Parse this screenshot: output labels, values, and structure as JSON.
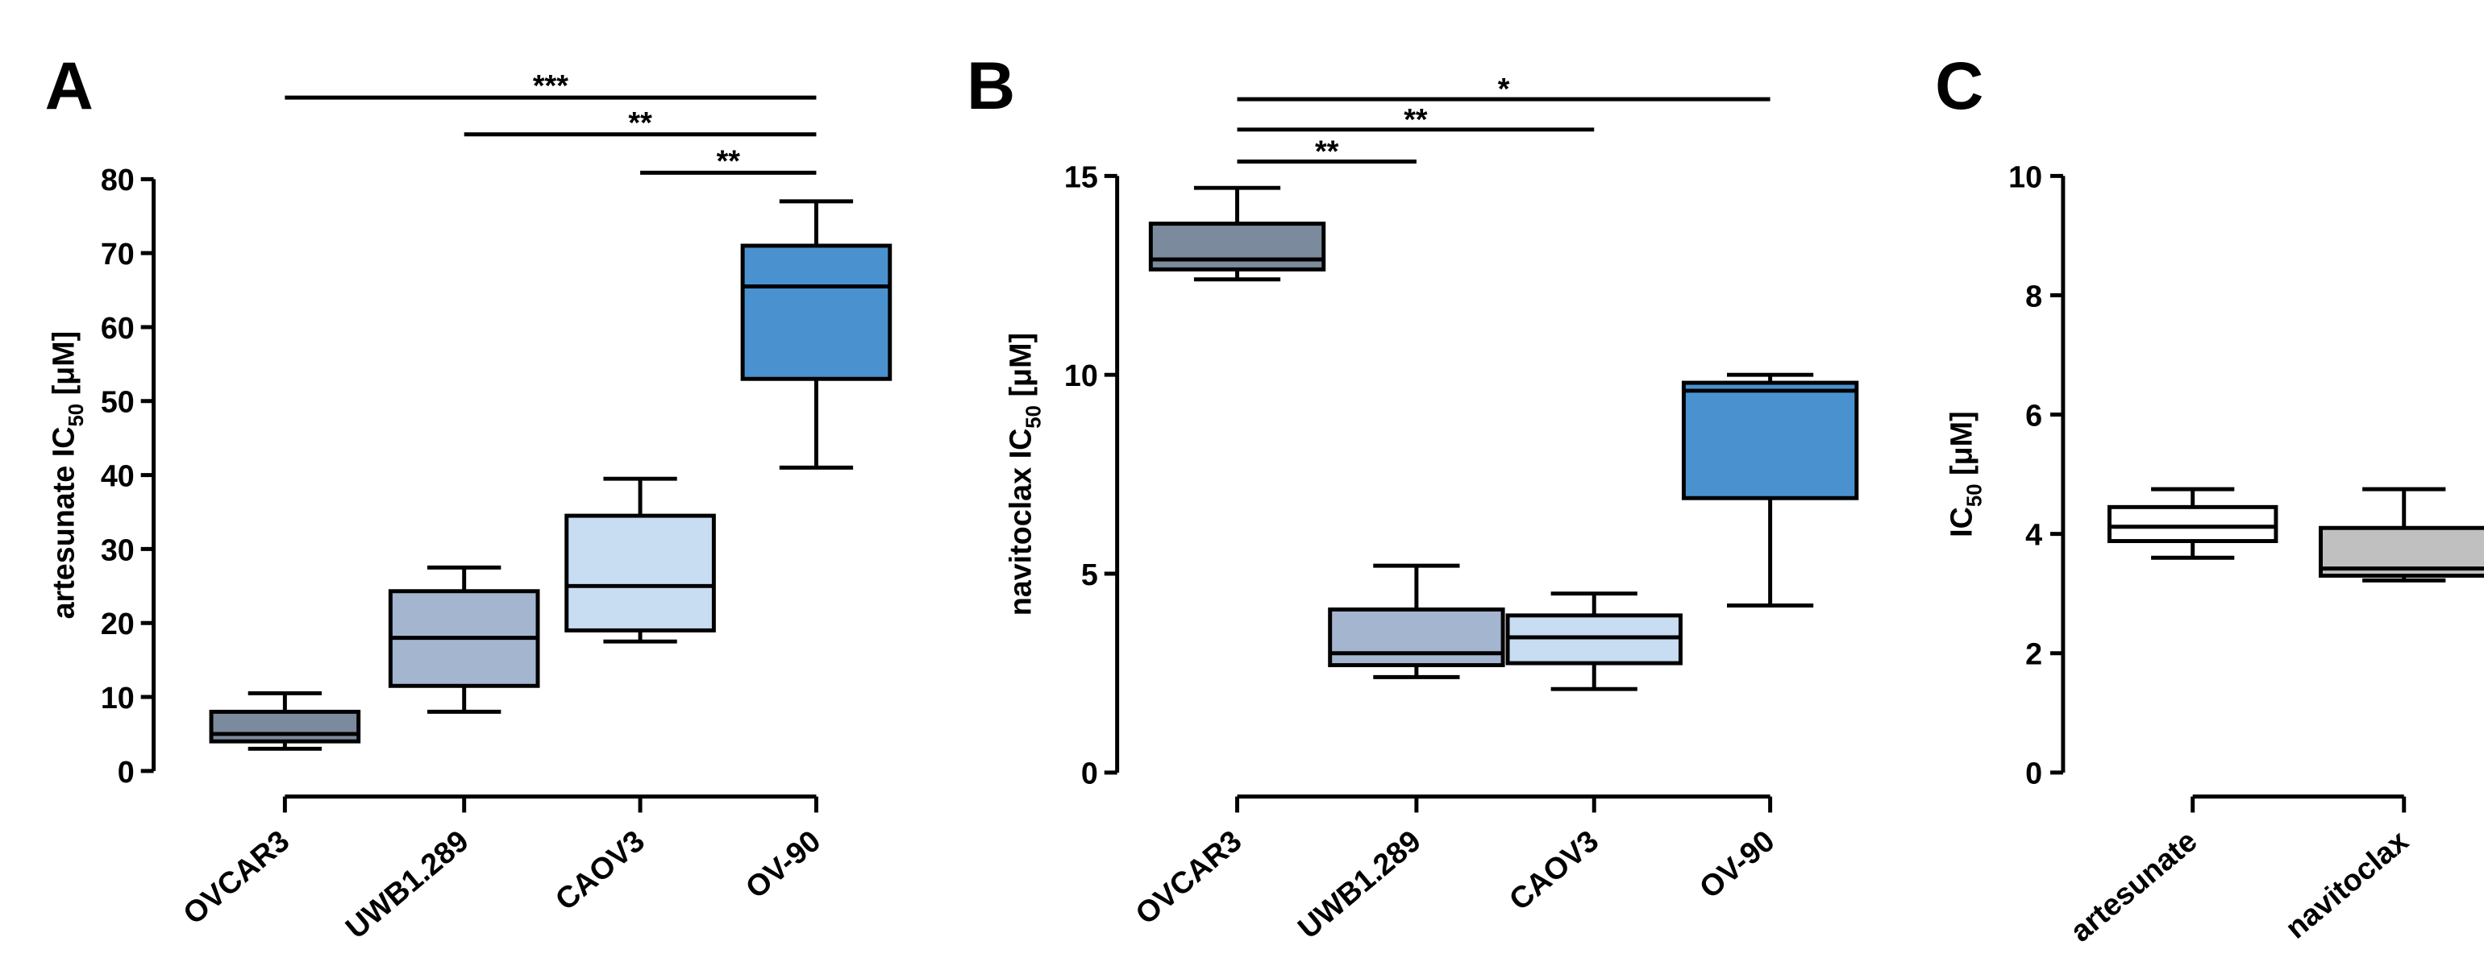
{
  "chart_data": [
    {
      "type": "box",
      "panel": "A",
      "ylabel": {
        "prefix": "artesunate IC",
        "sub": "50",
        "suffix": " [μM]"
      },
      "ylim": [
        0,
        80
      ],
      "yticks": [
        0,
        10,
        20,
        30,
        40,
        50,
        60,
        70,
        80
      ],
      "categories": [
        "OVCAR3",
        "UWB1.289",
        "CAOV3",
        "OV-90"
      ],
      "boxes": [
        {
          "name": "OVCAR3",
          "min": 3,
          "q1": 4,
          "median": 5,
          "q3": 8,
          "max": 10.5,
          "color": "#7b8a9c"
        },
        {
          "name": "UWB1.289",
          "min": 8,
          "q1": 11.5,
          "median": 18,
          "q3": 24.3,
          "max": 27.5,
          "color": "#a4b5cf"
        },
        {
          "name": "CAOV3",
          "min": 17.5,
          "q1": 19,
          "median": 25,
          "q3": 34.5,
          "max": 39.5,
          "color": "#c8dcf2"
        },
        {
          "name": "OV-90",
          "min": 41,
          "q1": 53,
          "median": 65.5,
          "q3": 71,
          "max": 77,
          "color": "#4a92cf"
        }
      ],
      "significance": [
        {
          "from": "OVCAR3",
          "to": "OV-90",
          "label": "***"
        },
        {
          "from": "UWB1.289",
          "to": "OV-90",
          "label": "**"
        },
        {
          "from": "CAOV3",
          "to": "OV-90",
          "label": "**"
        }
      ]
    },
    {
      "type": "box",
      "panel": "B",
      "ylabel": {
        "prefix": "navitoclax IC",
        "sub": "50",
        "suffix": " [μM]"
      },
      "ylim": [
        0,
        15
      ],
      "yticks": [
        0,
        5,
        10,
        15
      ],
      "categories": [
        "OVCAR3",
        "UWB1.289",
        "CAOV3",
        "OV-90"
      ],
      "boxes": [
        {
          "name": "OVCAR3",
          "min": 12.4,
          "q1": 12.65,
          "median": 12.9,
          "q3": 13.8,
          "max": 14.7,
          "color": "#7b8a9c"
        },
        {
          "name": "UWB1.289",
          "min": 2.4,
          "q1": 2.7,
          "median": 3.0,
          "q3": 4.1,
          "max": 5.2,
          "color": "#a4b5cf"
        },
        {
          "name": "CAOV3",
          "min": 2.1,
          "q1": 2.75,
          "median": 3.4,
          "q3": 3.95,
          "max": 4.5,
          "color": "#c8dcf2"
        },
        {
          "name": "OV-90",
          "min": 4.2,
          "q1": 6.9,
          "median": 9.6,
          "q3": 9.8,
          "max": 10.0,
          "color": "#4a92cf"
        }
      ],
      "significance": [
        {
          "from": "OVCAR3",
          "to": "OV-90",
          "label": "*"
        },
        {
          "from": "OVCAR3",
          "to": "CAOV3",
          "label": "**"
        },
        {
          "from": "OVCAR3",
          "to": "UWB1.289",
          "label": "**"
        }
      ]
    },
    {
      "type": "box",
      "panel": "C",
      "ylabel": {
        "prefix": "IC",
        "sub": "50",
        "suffix": " [μM]"
      },
      "ylim": [
        0,
        10
      ],
      "yticks": [
        0,
        2,
        4,
        6,
        8,
        10
      ],
      "categories": [
        "artesunate",
        "navitoclax"
      ],
      "boxes": [
        {
          "name": "artesunate",
          "min": 3.6,
          "q1": 3.88,
          "median": 4.12,
          "q3": 4.45,
          "max": 4.75,
          "color": "#ffffff"
        },
        {
          "name": "navitoclax",
          "min": 3.22,
          "q1": 3.3,
          "median": 3.42,
          "q3": 4.1,
          "max": 4.75,
          "color": "#c0c0c0"
        }
      ],
      "significance": []
    }
  ]
}
